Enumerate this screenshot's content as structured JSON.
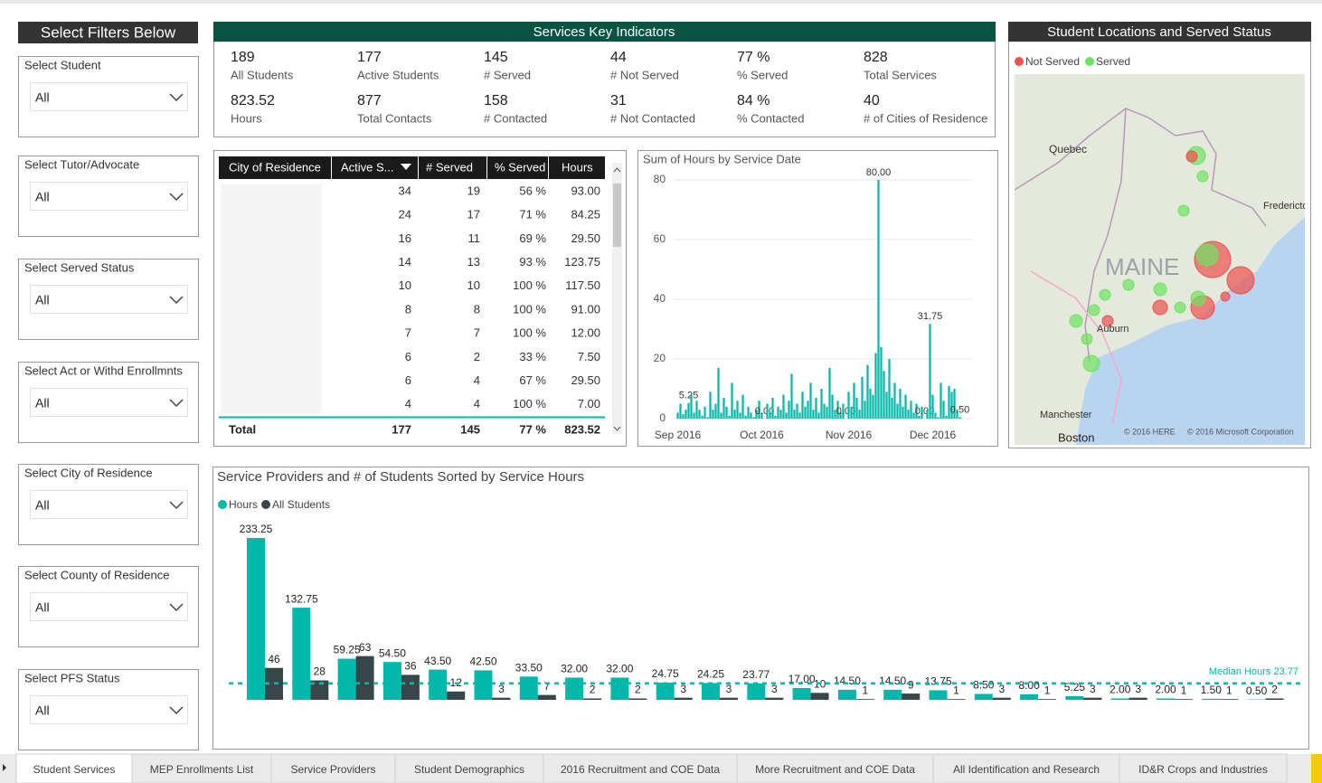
{
  "filters": {
    "title": "Select Filters Below",
    "items": [
      {
        "label": "Select Student",
        "value": "All"
      },
      {
        "label": "Select Tutor/Advocate",
        "value": "All"
      },
      {
        "label": "Select Served Status",
        "value": "All"
      },
      {
        "label": "Select Act or Withd Enrollmnts",
        "value": "All"
      },
      {
        "label": "Select City of Residence",
        "value": "All"
      },
      {
        "label": "Select County of Residence",
        "value": "All"
      },
      {
        "label": "Select PFS Status",
        "value": "All"
      }
    ]
  },
  "kpis": {
    "title": "Services Key Indicators",
    "items": [
      {
        "value": 189,
        "label": "All Students"
      },
      {
        "value": 177,
        "label": "Active Students"
      },
      {
        "value": 145,
        "label": "# Served"
      },
      {
        "value": 44,
        "label": "# Not Served"
      },
      {
        "value": 77,
        "value_label": "77 %",
        "label": "% Served"
      },
      {
        "value": 828,
        "label": "Total Services"
      },
      {
        "value": 823.52,
        "label": "Hours"
      },
      {
        "value": 877,
        "label": "Total Contacts"
      },
      {
        "value": 158,
        "label": "# Contacted"
      },
      {
        "value": 31,
        "label": "# Not Contacted"
      },
      {
        "value": 84,
        "value_label": "84 %",
        "label": "% Contacted"
      },
      {
        "value": 40,
        "label": "# of Cities of Residence"
      }
    ]
  },
  "map": {
    "title": "Student Locations and Served Status",
    "legend": [
      {
        "name": "Not Served",
        "color": "#f0504f"
      },
      {
        "name": "Served",
        "color": "#6ee35f"
      }
    ],
    "places": [
      "Quebec",
      "Fredericton",
      "MAINE",
      "Auburn",
      "Manchester",
      "Boston"
    ],
    "credits": [
      "© 2016 HERE",
      "© 2016 Microsoft Corporation"
    ]
  },
  "table": {
    "columns": [
      "City of Residence",
      "Active S...",
      "# Served",
      "% Served",
      "Hours"
    ],
    "rows": [
      [
        null,
        "34",
        "19",
        "56 %",
        "93.00"
      ],
      [
        null,
        "24",
        "17",
        "71 %",
        "84.25"
      ],
      [
        null,
        "16",
        "11",
        "69 %",
        "29.50"
      ],
      [
        null,
        "14",
        "13",
        "93 %",
        "123.75"
      ],
      [
        null,
        "10",
        "10",
        "100 %",
        "117.50"
      ],
      [
        null,
        "8",
        "8",
        "100 %",
        "91.00"
      ],
      [
        null,
        "7",
        "7",
        "100 %",
        "12.00"
      ],
      [
        null,
        "6",
        "2",
        "33 %",
        "7.50"
      ],
      [
        null,
        "6",
        "4",
        "67 %",
        "29.50"
      ],
      [
        null,
        "4",
        "4",
        "100 %",
        "7.00"
      ]
    ],
    "total": [
      "Total",
      "177",
      "145",
      "77 %",
      "823.52"
    ]
  },
  "hours_chart": {
    "type": "bar",
    "title": "Sum of Hours by Service Date",
    "categories": [
      null,
      "Sep 2016",
      null,
      null,
      null,
      null,
      null,
      null,
      null,
      null,
      null,
      null,
      null,
      null,
      null,
      null,
      null,
      null,
      null,
      null,
      null,
      null,
      null,
      null,
      null,
      null,
      null,
      null,
      null,
      null,
      null,
      null,
      "Oct 2016",
      null,
      null,
      null,
      null,
      null,
      null,
      null,
      null,
      null,
      null,
      null,
      null,
      null,
      null,
      null,
      null,
      null,
      null,
      null,
      null,
      null,
      null,
      null,
      null,
      null,
      null,
      null,
      null,
      null,
      null,
      null,
      "Nov 2016",
      null,
      null,
      null,
      null,
      null,
      null,
      null,
      null,
      null,
      null,
      null,
      null,
      null,
      null,
      null,
      null,
      null,
      null,
      null,
      null,
      null,
      null,
      null,
      null,
      null,
      null,
      null,
      null,
      null,
      null,
      "Dec 2016",
      null,
      null,
      null,
      null,
      null,
      null,
      null,
      null,
      null,
      null,
      null,
      null,
      null,
      null
    ],
    "values": [
      0,
      2,
      5,
      1.5,
      3,
      5.25,
      8,
      2,
      6,
      3,
      1,
      4,
      0.5,
      9,
      3,
      5,
      17,
      2,
      7,
      4,
      1,
      12,
      3,
      6,
      2,
      8,
      1,
      4,
      2,
      0.5,
      3,
      6,
      2,
      0,
      5,
      2,
      7,
      1,
      4,
      3,
      8,
      2,
      6,
      15,
      3,
      5,
      2,
      9,
      4,
      6,
      12,
      3,
      7,
      2,
      10,
      5,
      4,
      17,
      8,
      3,
      6,
      2,
      5,
      0,
      9,
      4,
      12,
      7,
      3,
      14,
      6,
      18,
      10,
      8,
      22,
      80,
      24,
      16,
      9,
      20,
      7,
      12,
      5,
      10,
      4,
      8,
      3,
      6,
      2,
      5,
      1,
      4,
      0,
      3,
      31.75,
      8,
      2,
      0.5,
      12,
      6,
      1,
      11,
      9,
      10,
      3,
      0.5,
      0,
      0,
      0,
      0
    ],
    "value_labels": [
      null,
      null,
      null,
      null,
      null,
      "5.25",
      null,
      null,
      null,
      null,
      null,
      null,
      null,
      null,
      null,
      null,
      null,
      null,
      null,
      null,
      null,
      null,
      null,
      null,
      null,
      null,
      null,
      null,
      null,
      null,
      null,
      null,
      null,
      "0.00",
      null,
      null,
      null,
      null,
      null,
      null,
      null,
      null,
      null,
      null,
      null,
      null,
      null,
      null,
      null,
      null,
      null,
      null,
      null,
      null,
      null,
      null,
      null,
      null,
      null,
      null,
      null,
      null,
      null,
      "0.00",
      null,
      null,
      null,
      null,
      null,
      null,
      null,
      null,
      null,
      null,
      null,
      "80.00",
      null,
      null,
      null,
      null,
      null,
      null,
      null,
      null,
      null,
      null,
      null,
      null,
      null,
      null,
      null,
      null,
      "0.00",
      null,
      "31.75",
      null,
      null,
      null,
      null,
      null,
      null,
      null,
      null,
      null,
      null,
      "0.50",
      null,
      null,
      null,
      null
    ],
    "color": "#01b8aa",
    "ylim": [
      0,
      80
    ],
    "yticks": [
      0,
      20,
      40,
      60,
      80
    ],
    "grid": true
  },
  "providers_chart": {
    "type": "bar",
    "title": "Service Providers and # of Students Sorted by Service Hours",
    "categories": [
      null,
      null,
      null,
      null,
      null,
      null,
      null,
      null,
      null,
      null,
      null,
      null,
      null,
      null,
      null,
      null,
      null,
      null,
      null,
      null,
      null,
      null,
      null
    ],
    "series": [
      {
        "name": "Hours",
        "color": "#01b8aa",
        "values": [
          233.25,
          132.75,
          59.25,
          54.5,
          43.5,
          42.5,
          33.5,
          32,
          32,
          24.75,
          24.25,
          23.77,
          17,
          14.5,
          14.5,
          13.75,
          8.5,
          8,
          5.25,
          2,
          2,
          1.5,
          0.5
        ],
        "value_labels": [
          "233.25",
          "132.75",
          "59.25",
          "54.50",
          "43.50",
          "42.50",
          "33.50",
          "32.00",
          "32.00",
          "24.75",
          "24.25",
          "23.77",
          "17.00",
          "14.50",
          "14.50",
          "13.75",
          "8.50",
          "8.00",
          "5.25",
          "2.00",
          "2.00",
          "1.50",
          "0.50"
        ]
      },
      {
        "name": "All Students",
        "color": "#374649",
        "values": [
          46,
          28,
          63,
          36,
          12,
          3,
          7,
          2,
          2,
          3,
          3,
          3,
          10,
          1,
          9,
          1,
          3,
          1,
          3,
          3,
          1,
          1,
          2
        ]
      }
    ],
    "median": {
      "label": "Median Hours",
      "value": 23.77
    }
  },
  "tabs": [
    "Student Services",
    "MEP Enrollments List",
    "Service Providers",
    "Student Demographics",
    "2016 Recruitment and COE Data",
    "More Recruitment and COE Data",
    "All Identification and Research",
    "ID&R Crops and Industries"
  ]
}
